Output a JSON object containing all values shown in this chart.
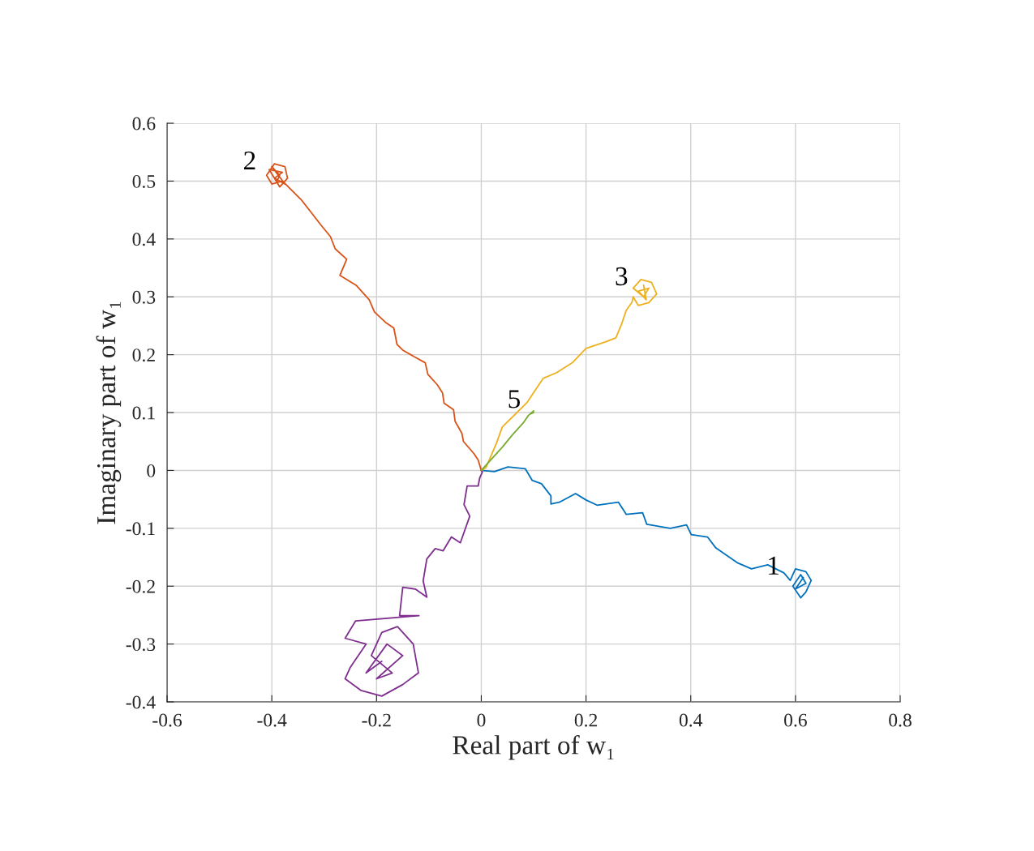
{
  "chart_data": {
    "type": "line",
    "xlabel": "Real part of w₁",
    "ylabel": "Imaginary part of w₁",
    "xlim": [
      -0.6,
      0.8
    ],
    "ylim": [
      -0.4,
      0.6
    ],
    "xticks": [
      -0.6,
      -0.4,
      -0.2,
      0,
      0.2,
      0.4,
      0.6,
      0.8
    ],
    "yticks": [
      -0.4,
      -0.3,
      -0.2,
      -0.1,
      0,
      0.1,
      0.2,
      0.3,
      0.4,
      0.5,
      0.6
    ],
    "grid": true,
    "marker": "none",
    "line_style": "solid",
    "series": [
      {
        "color": "#0072bd",
        "x": [
          0,
          0.025,
          0.051,
          0.084,
          0.097,
          0.115,
          0.133,
          0.133,
          0.149,
          0.18,
          0.2,
          0.221,
          0.262,
          0.277,
          0.308,
          0.316,
          0.361,
          0.392,
          0.401,
          0.432,
          0.448,
          0.49,
          0.516,
          0.547,
          0.578,
          0.59,
          0.6,
          0.62,
          0.63,
          0.62,
          0.61,
          0.595,
          0.61,
          0.62,
          0.6,
          0.615
        ],
        "values": [
          0,
          -0.002,
          0.006,
          0.003,
          -0.017,
          -0.023,
          -0.044,
          -0.058,
          -0.055,
          -0.04,
          -0.051,
          -0.06,
          -0.055,
          -0.076,
          -0.073,
          -0.093,
          -0.1,
          -0.094,
          -0.111,
          -0.115,
          -0.134,
          -0.16,
          -0.17,
          -0.163,
          -0.177,
          -0.19,
          -0.17,
          -0.175,
          -0.19,
          -0.21,
          -0.22,
          -0.2,
          -0.18,
          -0.195,
          -0.205,
          -0.185
        ]
      },
      {
        "color": "#d95319",
        "x": [
          0,
          -0.006,
          -0.014,
          -0.034,
          -0.037,
          -0.05,
          -0.053,
          -0.071,
          -0.074,
          -0.084,
          -0.102,
          -0.107,
          -0.127,
          -0.15,
          -0.161,
          -0.167,
          -0.183,
          -0.204,
          -0.214,
          -0.239,
          -0.27,
          -0.257,
          -0.279,
          -0.288,
          -0.307,
          -0.325,
          -0.344,
          -0.363,
          -0.375,
          -0.38,
          -0.4,
          -0.41,
          -0.395,
          -0.375,
          -0.37,
          -0.385,
          -0.405,
          -0.38,
          -0.395,
          -0.375,
          -0.4,
          -0.385,
          -0.39
        ],
        "values": [
          0,
          0.018,
          0.029,
          0.05,
          0.064,
          0.085,
          0.105,
          0.116,
          0.134,
          0.148,
          0.166,
          0.186,
          0.196,
          0.208,
          0.218,
          0.246,
          0.256,
          0.274,
          0.295,
          0.32,
          0.337,
          0.365,
          0.383,
          0.404,
          0.425,
          0.446,
          0.468,
          0.485,
          0.496,
          0.5,
          0.495,
          0.51,
          0.53,
          0.525,
          0.505,
          0.49,
          0.52,
          0.515,
          0.505,
          0.495,
          0.525,
          0.51,
          0.5
        ]
      },
      {
        "color": "#edb120",
        "x": [
          0,
          0.009,
          0.029,
          0.04,
          0.067,
          0.087,
          0.118,
          0.144,
          0.175,
          0.2,
          0.237,
          0.257,
          0.268,
          0.277,
          0.288,
          0.29,
          0.3,
          0.32,
          0.335,
          0.325,
          0.305,
          0.29,
          0.31,
          0.32,
          0.3,
          0.315,
          0.31
        ],
        "values": [
          0,
          0.005,
          0.047,
          0.075,
          0.099,
          0.117,
          0.159,
          0.169,
          0.187,
          0.211,
          0.222,
          0.229,
          0.253,
          0.277,
          0.291,
          0.3,
          0.285,
          0.29,
          0.305,
          0.325,
          0.33,
          0.315,
          0.3,
          0.315,
          0.31,
          0.295,
          0.32
        ]
      },
      {
        "color": "#7e2f8e",
        "x": [
          0,
          0.002,
          -0.003,
          -0.006,
          -0.027,
          -0.033,
          -0.022,
          -0.04,
          -0.057,
          -0.073,
          -0.088,
          -0.104,
          -0.111,
          -0.104,
          -0.126,
          -0.15,
          -0.156,
          -0.119,
          -0.24,
          -0.26,
          -0.22,
          -0.25,
          -0.26,
          -0.23,
          -0.19,
          -0.15,
          -0.12,
          -0.13,
          -0.16,
          -0.19,
          -0.21,
          -0.17,
          -0.2,
          -0.15,
          -0.18,
          -0.22,
          -0.19
        ],
        "values": [
          0,
          -0.003,
          -0.013,
          -0.027,
          -0.027,
          -0.059,
          -0.079,
          -0.125,
          -0.115,
          -0.139,
          -0.135,
          -0.153,
          -0.191,
          -0.219,
          -0.205,
          -0.202,
          -0.251,
          -0.251,
          -0.26,
          -0.29,
          -0.3,
          -0.34,
          -0.36,
          -0.38,
          -0.39,
          -0.37,
          -0.35,
          -0.3,
          -0.27,
          -0.28,
          -0.32,
          -0.35,
          -0.36,
          -0.32,
          -0.3,
          -0.35,
          -0.33
        ]
      },
      {
        "color": "#77ac30",
        "x": [
          0,
          0.02,
          0.04,
          0.06,
          0.08,
          0.09,
          0.1,
          0.095,
          0.1
        ],
        "values": [
          0,
          0.02,
          0.04,
          0.062,
          0.082,
          0.095,
          0.103,
          0.098,
          0.1
        ]
      }
    ],
    "annotations": [
      {
        "text": "1",
        "x": 0.59,
        "y": -0.19
      },
      {
        "text": "2",
        "x": -0.41,
        "y": 0.51
      },
      {
        "text": "3",
        "x": 0.3,
        "y": 0.31
      },
      {
        "text": "5",
        "x": 0.095,
        "y": 0.098
      }
    ]
  }
}
